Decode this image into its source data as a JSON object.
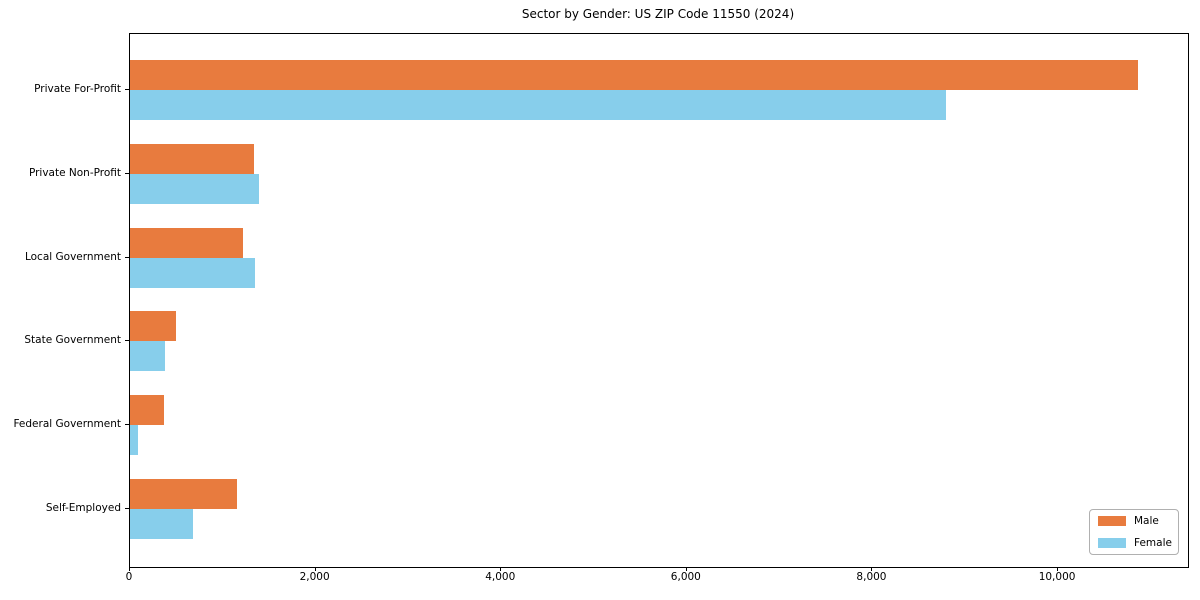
{
  "chart_data": {
    "type": "bar",
    "orientation": "horizontal",
    "title": "Sector by Gender: US ZIP Code 11550 (2024)",
    "categories": [
      "Private For-Profit",
      "Private Non-Profit",
      "Local Government",
      "State Government",
      "Federal Government",
      "Self-Employed"
    ],
    "series": [
      {
        "name": "Male",
        "color": "#E87B3E",
        "values": [
          10860,
          1340,
          1220,
          500,
          370,
          1150
        ]
      },
      {
        "name": "Female",
        "color": "#87CEEB",
        "values": [
          8790,
          1390,
          1350,
          380,
          90,
          680
        ]
      }
    ],
    "xlim": [
      0,
      11400
    ],
    "x_ticks": [
      0,
      2000,
      4000,
      6000,
      8000,
      10000
    ],
    "x_tick_labels": [
      "0",
      "2,000",
      "4,000",
      "6,000",
      "8,000",
      "10,000"
    ],
    "xlabel": "",
    "ylabel": "",
    "grid": false,
    "legend": {
      "position": "lower right",
      "entries": [
        "Male",
        "Female"
      ]
    }
  }
}
